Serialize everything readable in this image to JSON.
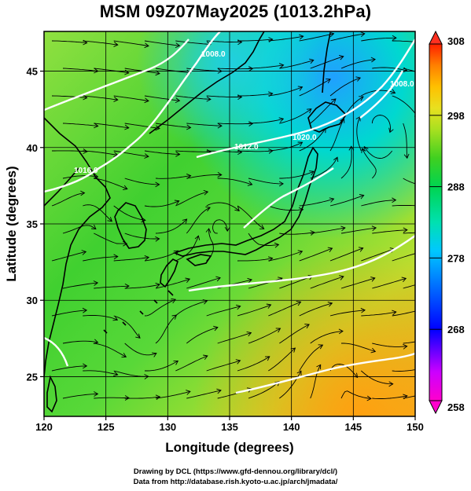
{
  "title": "MSM 09Z07May2025 (1013.2hPa)",
  "map": {
    "xlabel": "Longitude (degrees)",
    "ylabel": "Latitude  (degrees)",
    "lon_range": [
      120,
      150
    ],
    "lat_range": [
      22.4,
      47.6
    ],
    "lon_ticks": [
      120,
      125,
      130,
      135,
      140,
      145,
      150
    ],
    "lat_ticks": [
      25,
      30,
      35,
      40,
      45
    ],
    "contour_labels": [
      "1008.0",
      "1012.0",
      "1016.0",
      "1020.0",
      "1008.0"
    ],
    "coastline_color": "#000000",
    "contour_color": "#ffffff",
    "streamline_color": "#000000"
  },
  "colorbar": {
    "range": [
      258,
      308
    ],
    "ticks": [
      258,
      268,
      278,
      288,
      298,
      308
    ],
    "colors": [
      "#ff00cc",
      "#cc00ff",
      "#0000ff",
      "#0077ff",
      "#00c8ff",
      "#00e0b0",
      "#00d450",
      "#40d020",
      "#a8e020",
      "#e8e020",
      "#ffc000",
      "#ff8000",
      "#ff2000"
    ]
  },
  "credits": [
    "Drawing by DCL (https://www.gfd-dennou.org/library/dcl/)",
    "Data from http://database.rish.kyoto-u.ac.jp/arch/jmadata/"
  ]
}
